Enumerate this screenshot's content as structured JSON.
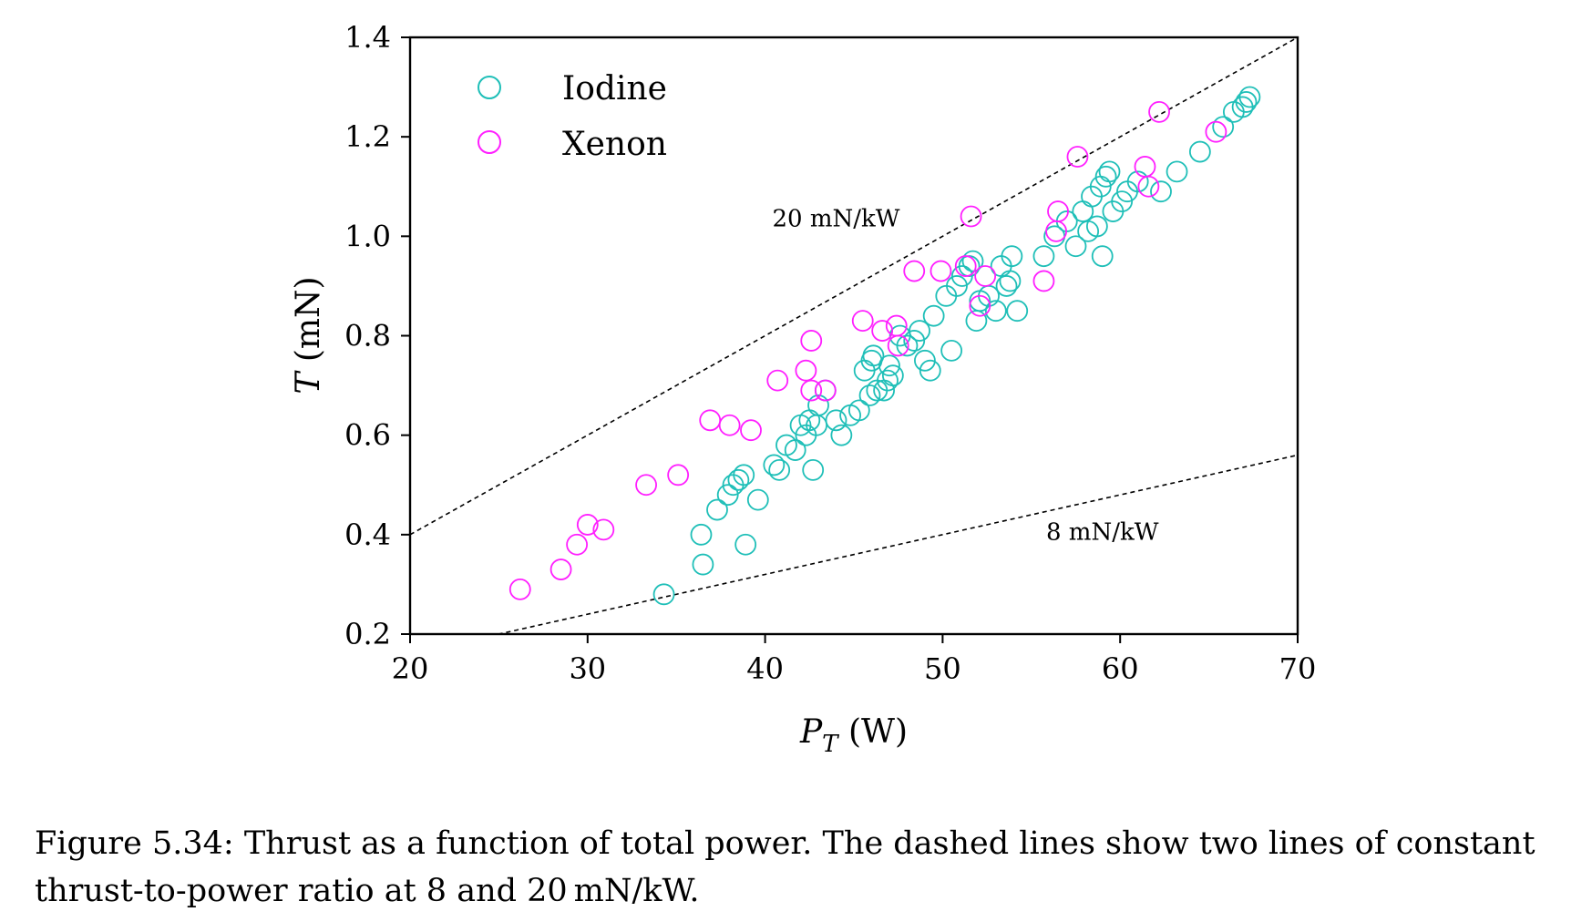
{
  "caption": "Figure 5.34: Thrust as a function of total power. The dashed lines show two lines of constant thrust-to-power ratio at 8 and 20 mN/kW.",
  "chart_data": {
    "type": "scatter",
    "xlabel_base": "P",
    "xlabel_sub": "T",
    "xlabel_unit": "(W)",
    "ylabel_italic": "T",
    "ylabel_unit": "(mN)",
    "xlim": [
      20,
      70
    ],
    "ylim": [
      0.2,
      1.4
    ],
    "xticks": [
      20,
      30,
      40,
      50,
      60,
      70
    ],
    "yticks": [
      0.2,
      0.4,
      0.6,
      0.8,
      1.0,
      1.2,
      1.4
    ],
    "xtick_labels": [
      "20",
      "30",
      "40",
      "50",
      "60",
      "70"
    ],
    "ytick_labels": [
      "0.2",
      "0.4",
      "0.6",
      "0.8",
      "1.0",
      "1.2",
      "1.4"
    ],
    "legend_position": "top-left",
    "grid": false,
    "reference_lines": [
      {
        "label": "20 mN/kW",
        "slope_mN_per_kW": 20,
        "style": "dashed",
        "color": "#000000",
        "label_at": [
          44,
          1.02
        ]
      },
      {
        "label": "8 mN/kW",
        "slope_mN_per_kW": 8,
        "style": "dashed",
        "color": "#000000",
        "label_at": [
          59,
          0.39
        ]
      }
    ],
    "series": [
      {
        "name": "Iodine",
        "color": "#1fbfb8",
        "marker": "open-circle",
        "points": [
          [
            34.3,
            0.28
          ],
          [
            36.5,
            0.34
          ],
          [
            36.4,
            0.4
          ],
          [
            37.3,
            0.45
          ],
          [
            37.9,
            0.48
          ],
          [
            38.2,
            0.5
          ],
          [
            38.5,
            0.51
          ],
          [
            38.8,
            0.52
          ],
          [
            38.9,
            0.38
          ],
          [
            39.6,
            0.47
          ],
          [
            40.5,
            0.54
          ],
          [
            40.8,
            0.53
          ],
          [
            41.2,
            0.58
          ],
          [
            41.7,
            0.57
          ],
          [
            42.0,
            0.62
          ],
          [
            42.3,
            0.6
          ],
          [
            42.5,
            0.63
          ],
          [
            42.7,
            0.53
          ],
          [
            42.9,
            0.62
          ],
          [
            43.0,
            0.66
          ],
          [
            43.4,
            0.69
          ],
          [
            44.0,
            0.63
          ],
          [
            44.3,
            0.6
          ],
          [
            44.8,
            0.64
          ],
          [
            45.3,
            0.65
          ],
          [
            45.6,
            0.73
          ],
          [
            45.9,
            0.68
          ],
          [
            46.0,
            0.75
          ],
          [
            46.1,
            0.76
          ],
          [
            46.3,
            0.69
          ],
          [
            46.7,
            0.69
          ],
          [
            46.9,
            0.71
          ],
          [
            47.0,
            0.74
          ],
          [
            47.2,
            0.72
          ],
          [
            47.6,
            0.8
          ],
          [
            48.0,
            0.78
          ],
          [
            48.4,
            0.79
          ],
          [
            48.7,
            0.81
          ],
          [
            49.0,
            0.75
          ],
          [
            49.3,
            0.73
          ],
          [
            49.5,
            0.84
          ],
          [
            50.2,
            0.88
          ],
          [
            50.5,
            0.77
          ],
          [
            50.8,
            0.9
          ],
          [
            51.1,
            0.92
          ],
          [
            51.5,
            0.94
          ],
          [
            51.7,
            0.95
          ],
          [
            51.9,
            0.83
          ],
          [
            52.1,
            0.87
          ],
          [
            52.6,
            0.88
          ],
          [
            53.0,
            0.85
          ],
          [
            53.3,
            0.94
          ],
          [
            53.6,
            0.9
          ],
          [
            53.8,
            0.91
          ],
          [
            53.9,
            0.96
          ],
          [
            54.2,
            0.85
          ],
          [
            55.7,
            0.96
          ],
          [
            56.3,
            1.0
          ],
          [
            57.0,
            1.03
          ],
          [
            57.5,
            0.98
          ],
          [
            57.9,
            1.05
          ],
          [
            58.2,
            1.01
          ],
          [
            58.4,
            1.08
          ],
          [
            58.7,
            1.02
          ],
          [
            58.9,
            1.1
          ],
          [
            59.0,
            0.96
          ],
          [
            59.2,
            1.12
          ],
          [
            59.4,
            1.13
          ],
          [
            59.6,
            1.05
          ],
          [
            60.1,
            1.07
          ],
          [
            60.4,
            1.09
          ],
          [
            61.0,
            1.11
          ],
          [
            62.3,
            1.09
          ],
          [
            63.2,
            1.13
          ],
          [
            64.5,
            1.17
          ],
          [
            65.8,
            1.22
          ],
          [
            66.4,
            1.25
          ],
          [
            66.9,
            1.26
          ],
          [
            67.1,
            1.27
          ],
          [
            67.3,
            1.28
          ]
        ]
      },
      {
        "name": "Xenon",
        "color": "#ff1fff",
        "marker": "open-circle",
        "points": [
          [
            26.2,
            0.29
          ],
          [
            28.5,
            0.33
          ],
          [
            29.4,
            0.38
          ],
          [
            30.0,
            0.42
          ],
          [
            30.9,
            0.41
          ],
          [
            33.3,
            0.5
          ],
          [
            35.1,
            0.52
          ],
          [
            36.9,
            0.63
          ],
          [
            38.0,
            0.62
          ],
          [
            39.2,
            0.61
          ],
          [
            40.7,
            0.71
          ],
          [
            42.3,
            0.73
          ],
          [
            42.6,
            0.79
          ],
          [
            42.6,
            0.69
          ],
          [
            43.4,
            0.69
          ],
          [
            45.5,
            0.83
          ],
          [
            46.6,
            0.81
          ],
          [
            47.4,
            0.82
          ],
          [
            47.5,
            0.78
          ],
          [
            48.4,
            0.93
          ],
          [
            49.9,
            0.93
          ],
          [
            51.3,
            0.94
          ],
          [
            51.6,
            1.04
          ],
          [
            52.1,
            0.86
          ],
          [
            52.4,
            0.92
          ],
          [
            55.7,
            0.91
          ],
          [
            56.4,
            1.01
          ],
          [
            56.5,
            1.05
          ],
          [
            57.6,
            1.16
          ],
          [
            61.4,
            1.14
          ],
          [
            61.6,
            1.1
          ],
          [
            62.2,
            1.25
          ],
          [
            65.4,
            1.21
          ]
        ]
      }
    ]
  }
}
